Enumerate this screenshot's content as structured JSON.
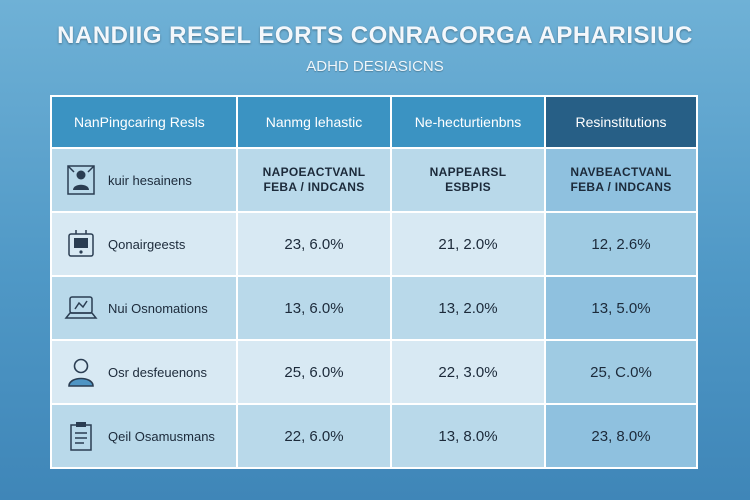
{
  "title": "NANDIIG RESEL EORTS CONRACORGA APHARISIUC",
  "subtitle": "ADHD DESIASICNS",
  "columns": [
    "NanPingcaring Resls",
    "Nanmg lehastic",
    "Ne-hecturtienbns",
    "Resinstitutions"
  ],
  "rows": [
    {
      "label": "kuir hesainens",
      "icon": "person-icon",
      "values": [
        "NAPOEACTVANL\nFEBA / INDCANS",
        "NAPPEARSL\nESBPIS",
        "NAVBEACTVANL\nFEBA / INDCANS"
      ]
    },
    {
      "label": "Qonairgeests",
      "icon": "phone-icon",
      "values": [
        "23, 6.0%",
        "21, 2.0%",
        "12, 2.6%"
      ]
    },
    {
      "label": "Nui Osnomations",
      "icon": "laptop-icon",
      "values": [
        "13, 6.0%",
        "13, 2.0%",
        "13, 5.0%"
      ]
    },
    {
      "label": "Osr desfeuenons",
      "icon": "user-icon",
      "values": [
        "25, 6.0%",
        "22, 3.0%",
        "25, C.0%"
      ]
    },
    {
      "label": "Qeil Osamusmans",
      "icon": "clipboard-icon",
      "values": [
        "22, 6.0%",
        "13, 8.0%",
        "23, 8.0%"
      ]
    }
  ]
}
